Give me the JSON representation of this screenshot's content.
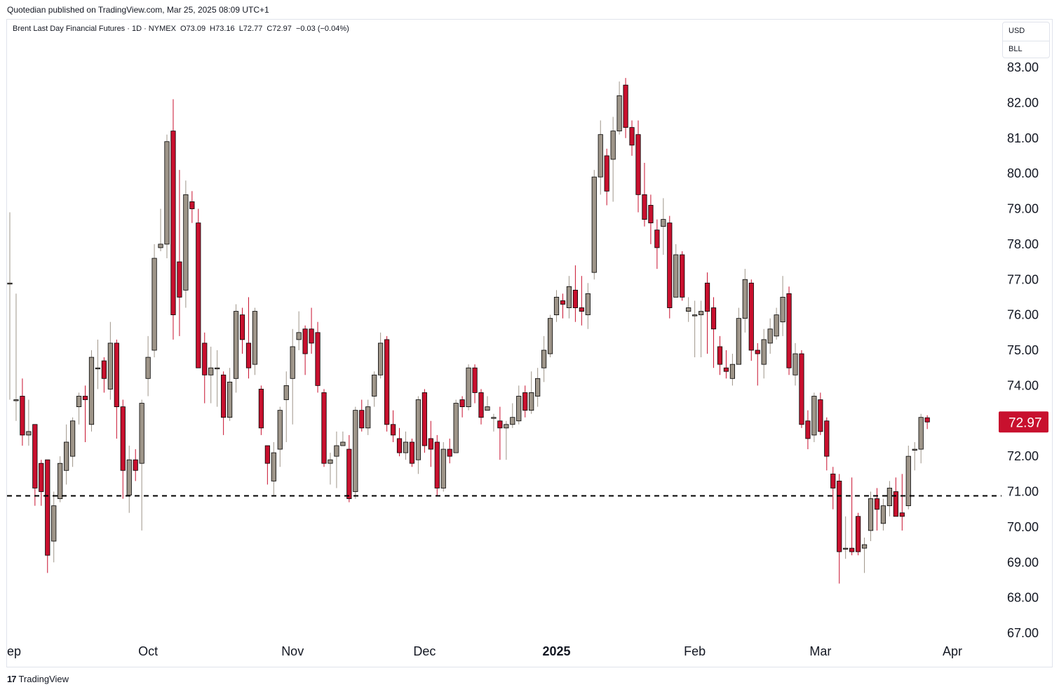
{
  "header": {
    "publisher": "Quotedian published on TradingView.com, Mar 25, 2025 08:09 UTC+1"
  },
  "legend": {
    "symbol": "Brent Last Day Financial Futures · 1D · NYMEX",
    "open": "O73.09",
    "high": "H73.16",
    "low": "L72.77",
    "close": "C72.97",
    "change": "−0.03 (−0.04%)"
  },
  "unit_box": {
    "currency": "USD",
    "unit": "BLL"
  },
  "last_price_label": "72.97",
  "footer": {
    "brand": "TradingView",
    "logo_text": "17"
  },
  "colors": {
    "up": "#9e9589",
    "down": "#c8102e",
    "wick_down": "#c8102e",
    "wick_up": "#9e9589",
    "price_label_bg": "#c8102e",
    "dashed_line": "#000000"
  },
  "chart_data": {
    "type": "candlestick",
    "y_axis": {
      "min": 67,
      "max": 83,
      "ticks": [
        "83.00",
        "82.00",
        "81.00",
        "80.00",
        "79.00",
        "78.00",
        "77.00",
        "76.00",
        "75.00",
        "74.00",
        "73.00",
        "72.00",
        "71.00",
        "70.00",
        "69.00",
        "68.00",
        "67.00"
      ],
      "position": "right"
    },
    "x_axis": {
      "ticks": [
        {
          "label": "ep",
          "bold": false,
          "index": 0
        },
        {
          "label": "Oct",
          "bold": false,
          "index": 22
        },
        {
          "label": "Nov",
          "bold": false,
          "index": 45
        },
        {
          "label": "Dec",
          "bold": false,
          "index": 66
        },
        {
          "label": "2025",
          "bold": true,
          "index": 87
        },
        {
          "label": "Feb",
          "bold": false,
          "index": 109
        },
        {
          "label": "Mar",
          "bold": false,
          "index": 129
        },
        {
          "label": "Apr",
          "bold": false,
          "index": 150
        }
      ]
    },
    "horizontal_line": {
      "value": 70.88,
      "style": "dashed"
    },
    "last_price": 72.97,
    "candles": [
      [
        76.9,
        76.9,
        78.9,
        73.6
      ],
      [
        73.6,
        73.6,
        76.6,
        73.0
      ],
      [
        73.7,
        72.6,
        74.2,
        72.3
      ],
      [
        72.6,
        72.7,
        73.6,
        72.3
      ],
      [
        72.9,
        71.1,
        72.9,
        70.6
      ],
      [
        71.8,
        71.0,
        71.9,
        70.6
      ],
      [
        71.9,
        69.2,
        71.9,
        68.7
      ],
      [
        69.6,
        70.6,
        71.0,
        69.0
      ],
      [
        70.8,
        71.8,
        72.0,
        70.7
      ],
      [
        71.6,
        72.4,
        72.9,
        71.2
      ],
      [
        72.0,
        73.0,
        73.1,
        71.7
      ],
      [
        73.4,
        73.7,
        73.8,
        72.9
      ],
      [
        73.7,
        73.6,
        74.0,
        72.4
      ],
      [
        72.9,
        74.8,
        75.0,
        72.7
      ],
      [
        74.5,
        74.5,
        75.3,
        73.9
      ],
      [
        74.7,
        74.2,
        74.8,
        73.8
      ],
      [
        73.9,
        75.2,
        75.8,
        73.6
      ],
      [
        75.2,
        73.4,
        75.3,
        72.5
      ],
      [
        73.4,
        71.6,
        73.6,
        70.8
      ],
      [
        70.9,
        71.9,
        72.3,
        70.4
      ],
      [
        71.9,
        71.6,
        72.2,
        71.3
      ],
      [
        71.8,
        73.5,
        73.6,
        69.9
      ],
      [
        74.2,
        74.8,
        75.4,
        73.7
      ],
      [
        75.0,
        77.6,
        78.0,
        74.8
      ],
      [
        77.9,
        78.0,
        79.0,
        77.8
      ],
      [
        78.0,
        80.9,
        81.1,
        77.6
      ],
      [
        81.2,
        76.0,
        82.1,
        75.3
      ],
      [
        77.5,
        76.5,
        80.1,
        75.4
      ],
      [
        76.7,
        79.4,
        79.8,
        76.2
      ],
      [
        79.2,
        79.0,
        79.5,
        78.6
      ],
      [
        78.6,
        74.5,
        79.0,
        75.0
      ],
      [
        75.2,
        74.3,
        75.5,
        73.5
      ],
      [
        74.3,
        74.5,
        75.1,
        73.5
      ],
      [
        74.5,
        74.5,
        75.0,
        73.4
      ],
      [
        74.3,
        73.1,
        74.4,
        72.6
      ],
      [
        73.1,
        74.1,
        74.5,
        73.0
      ],
      [
        74.2,
        76.1,
        76.3,
        73.8
      ],
      [
        76.0,
        75.3,
        76.2,
        74.9
      ],
      [
        75.2,
        74.5,
        76.5,
        74.2
      ],
      [
        74.6,
        76.1,
        76.2,
        74.3
      ],
      [
        73.9,
        72.8,
        74.0,
        72.6
      ],
      [
        72.3,
        71.8,
        72.3,
        71.2
      ],
      [
        71.3,
        72.1,
        72.4,
        70.9
      ],
      [
        72.2,
        73.3,
        73.4,
        71.7
      ],
      [
        73.6,
        74.0,
        74.4,
        72.4
      ],
      [
        74.2,
        75.1,
        75.6,
        72.9
      ],
      [
        75.3,
        75.5,
        76.1,
        75.0
      ],
      [
        75.6,
        74.9,
        75.7,
        74.3
      ],
      [
        75.6,
        75.2,
        76.2,
        74.9
      ],
      [
        75.5,
        74.0,
        75.8,
        73.8
      ],
      [
        73.8,
        71.8,
        73.9,
        71.7
      ],
      [
        71.8,
        71.9,
        72.1,
        71.2
      ],
      [
        72.0,
        72.3,
        72.7,
        71.1
      ],
      [
        72.3,
        72.4,
        72.7,
        72.3
      ],
      [
        72.2,
        70.8,
        72.6,
        70.7
      ],
      [
        71.0,
        73.3,
        73.4,
        70.8
      ],
      [
        73.3,
        72.8,
        73.6,
        72.7
      ],
      [
        72.8,
        73.4,
        73.6,
        72.6
      ],
      [
        73.7,
        74.3,
        74.4,
        73.4
      ],
      [
        74.3,
        75.2,
        75.5,
        74.2
      ],
      [
        75.3,
        72.9,
        75.4,
        72.7
      ],
      [
        72.9,
        72.6,
        73.3,
        72.4
      ],
      [
        72.5,
        72.1,
        72.8,
        72.0
      ],
      [
        72.1,
        72.4,
        72.7,
        71.9
      ],
      [
        72.4,
        71.8,
        72.5,
        71.7
      ],
      [
        71.9,
        73.6,
        73.7,
        71.5
      ],
      [
        73.8,
        72.3,
        73.9,
        72.1
      ],
      [
        72.5,
        72.2,
        73.0,
        71.7
      ],
      [
        72.4,
        71.1,
        72.6,
        70.9
      ],
      [
        71.1,
        72.2,
        72.4,
        71.0
      ],
      [
        72.2,
        72.0,
        72.5,
        71.8
      ],
      [
        72.1,
        73.5,
        73.6,
        72.1
      ],
      [
        73.6,
        73.4,
        73.7,
        73.1
      ],
      [
        73.4,
        74.5,
        74.6,
        73.3
      ],
      [
        74.5,
        73.8,
        74.6,
        73.5
      ],
      [
        73.8,
        73.1,
        73.9,
        72.9
      ],
      [
        73.3,
        73.4,
        73.7,
        73.3
      ],
      [
        73.1,
        73.1,
        73.2,
        72.7
      ],
      [
        73.0,
        72.8,
        73.4,
        71.9
      ],
      [
        72.8,
        72.9,
        73.0,
        71.9
      ],
      [
        72.9,
        73.1,
        73.5,
        72.8
      ],
      [
        73.0,
        73.7,
        74.0,
        72.9
      ],
      [
        73.8,
        73.3,
        74.0,
        73.1
      ],
      [
        73.3,
        73.8,
        74.4,
        73.2
      ],
      [
        73.7,
        74.2,
        74.5,
        73.4
      ],
      [
        74.5,
        75.0,
        75.4,
        74.1
      ],
      [
        74.9,
        75.9,
        76.0,
        74.8
      ],
      [
        76.0,
        76.5,
        76.7,
        75.8
      ],
      [
        76.4,
        76.3,
        76.6,
        75.9
      ],
      [
        76.2,
        76.8,
        77.1,
        75.9
      ],
      [
        76.7,
        76.2,
        77.4,
        75.8
      ],
      [
        76.2,
        76.1,
        77.1,
        75.7
      ],
      [
        76.0,
        76.6,
        76.9,
        75.6
      ],
      [
        77.2,
        79.9,
        80.1,
        77.0
      ],
      [
        79.9,
        81.1,
        81.5,
        79.4
      ],
      [
        80.5,
        79.5,
        80.7,
        79.1
      ],
      [
        80.4,
        81.2,
        81.6,
        79.2
      ],
      [
        81.2,
        82.2,
        82.6,
        81.1
      ],
      [
        82.5,
        81.3,
        82.7,
        81.0
      ],
      [
        81.3,
        80.8,
        81.5,
        80.5
      ],
      [
        81.1,
        79.4,
        81.5,
        78.9
      ],
      [
        79.4,
        78.7,
        80.3,
        78.5
      ],
      [
        79.1,
        78.6,
        79.4,
        78.0
      ],
      [
        78.4,
        77.9,
        78.7,
        77.3
      ],
      [
        78.5,
        78.7,
        79.3,
        77.7
      ],
      [
        78.6,
        76.2,
        78.8,
        75.9
      ],
      [
        76.5,
        77.7,
        78.0,
        76.5
      ],
      [
        77.7,
        76.5,
        77.8,
        76.4
      ],
      [
        76.1,
        76.2,
        76.5,
        75.8
      ],
      [
        76.0,
        76.0,
        76.4,
        74.8
      ],
      [
        76.0,
        76.1,
        76.4,
        74.8
      ],
      [
        76.9,
        76.1,
        77.2,
        74.9
      ],
      [
        76.2,
        75.6,
        76.5,
        74.5
      ],
      [
        75.1,
        74.6,
        75.4,
        74.3
      ],
      [
        74.5,
        74.4,
        75.0,
        74.2
      ],
      [
        74.2,
        74.6,
        74.9,
        74.0
      ],
      [
        74.6,
        75.9,
        76.2,
        74.6
      ],
      [
        75.9,
        77.0,
        77.3,
        75.5
      ],
      [
        76.9,
        75.0,
        77.0,
        74.7
      ],
      [
        75.0,
        74.9,
        75.2,
        74.0
      ],
      [
        74.6,
        75.3,
        75.6,
        74.2
      ],
      [
        75.2,
        75.6,
        75.9,
        74.9
      ],
      [
        75.4,
        76.0,
        76.2,
        75.3
      ],
      [
        75.8,
        76.5,
        77.1,
        75.4
      ],
      [
        76.6,
        74.5,
        76.8,
        74.3
      ],
      [
        74.3,
        74.9,
        75.2,
        74.0
      ],
      [
        74.9,
        72.9,
        75.0,
        72.8
      ],
      [
        73.0,
        72.5,
        73.3,
        72.2
      ],
      [
        72.6,
        73.7,
        73.8,
        72.4
      ],
      [
        73.6,
        72.7,
        73.8,
        72.6
      ],
      [
        73.0,
        72.0,
        73.1,
        71.6
      ],
      [
        71.5,
        71.1,
        71.7,
        70.5
      ],
      [
        71.3,
        69.3,
        71.5,
        68.4
      ],
      [
        69.4,
        69.4,
        70.3,
        69.1
      ],
      [
        69.4,
        69.3,
        71.4,
        69.2
      ],
      [
        70.3,
        69.3,
        70.4,
        69.2
      ],
      [
        69.4,
        69.5,
        69.7,
        68.7
      ],
      [
        69.9,
        70.8,
        71.0,
        69.6
      ],
      [
        70.8,
        70.5,
        71.1,
        69.9
      ],
      [
        70.1,
        70.6,
        70.8,
        69.9
      ],
      [
        70.6,
        71.1,
        71.3,
        70.3
      ],
      [
        71.0,
        70.3,
        71.4,
        70.3
      ],
      [
        70.4,
        70.3,
        71.5,
        69.9
      ],
      [
        70.6,
        72.0,
        72.3,
        70.5
      ],
      [
        72.2,
        72.2,
        72.4,
        71.6
      ],
      [
        72.2,
        73.1,
        73.2,
        71.8
      ],
      [
        73.09,
        72.97,
        73.16,
        72.77
      ]
    ]
  }
}
